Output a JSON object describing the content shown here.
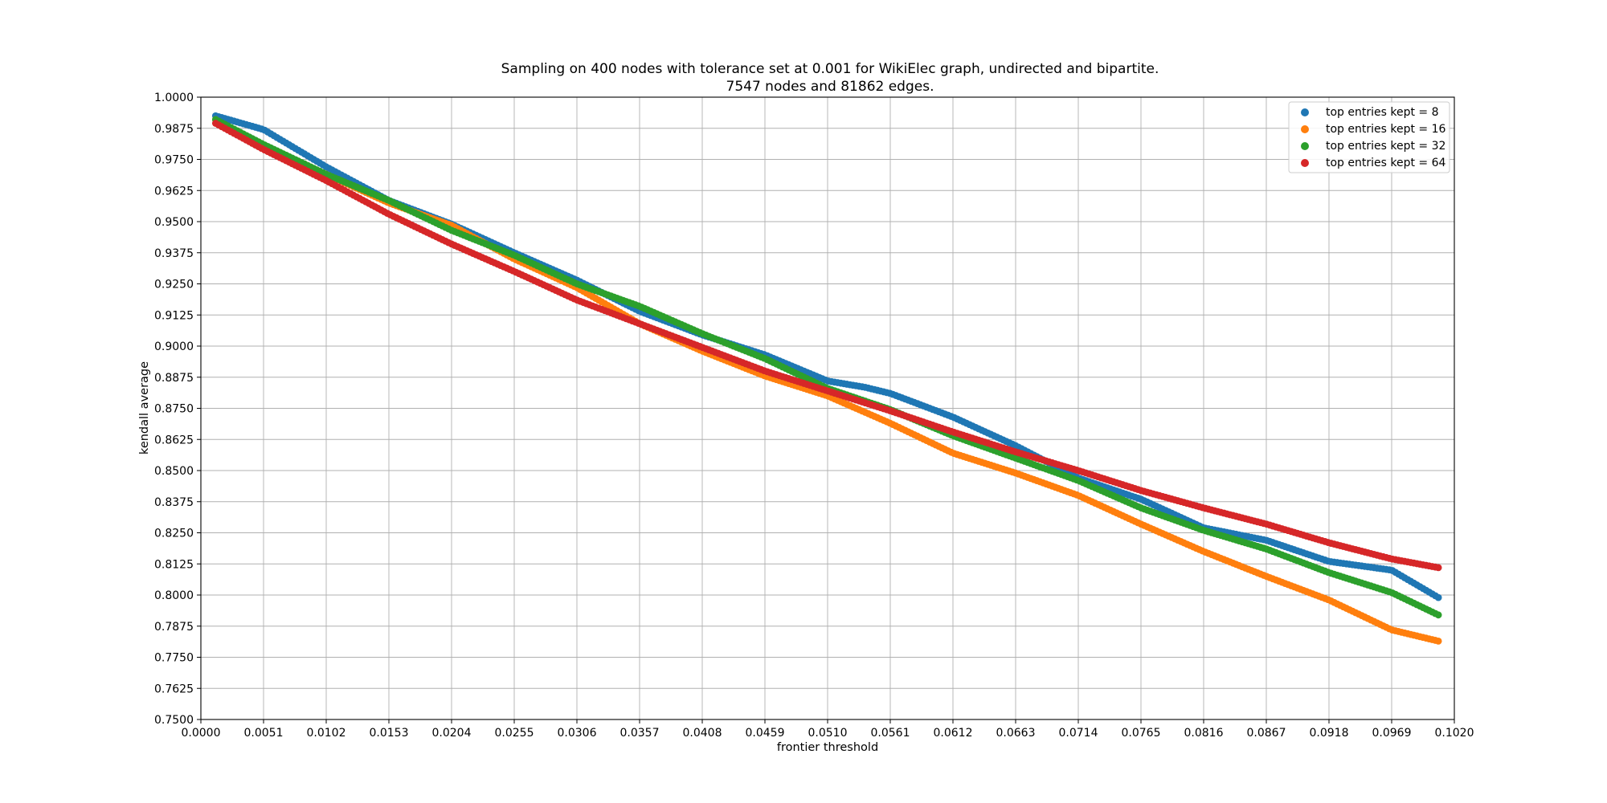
{
  "chart_data": {
    "type": "scatter",
    "title_lines": [
      "Sampling on 400 nodes with tolerance set at 0.001 for WikiElec graph, undirected and bipartite.",
      "7547 nodes and 81862 edges."
    ],
    "xlabel": "frontier threshold",
    "ylabel": "kendall average",
    "xlim": [
      0.0,
      0.102
    ],
    "ylim": [
      0.75,
      1.0
    ],
    "grid": true,
    "legend_position": "top-right",
    "x_ticks": [
      "0.0000",
      "0.0051",
      "0.0102",
      "0.0153",
      "0.0204",
      "0.0255",
      "0.0306",
      "0.0357",
      "0.0408",
      "0.0459",
      "0.0510",
      "0.0561",
      "0.0612",
      "0.0663",
      "0.0714",
      "0.0765",
      "0.0816",
      "0.0867",
      "0.0918",
      "0.0969",
      "0.1020"
    ],
    "y_ticks": [
      "0.7500",
      "0.7625",
      "0.7750",
      "0.7875",
      "0.8000",
      "0.8125",
      "0.8250",
      "0.8375",
      "0.8500",
      "0.8625",
      "0.8750",
      "0.8875",
      "0.9000",
      "0.9125",
      "0.9250",
      "0.9375",
      "0.9500",
      "0.9625",
      "0.9750",
      "0.9875",
      "1.0000"
    ],
    "x_sample": {
      "start": 0.0012,
      "end": 0.1007,
      "count": 400
    },
    "series": [
      {
        "name": "top entries kept = 8",
        "color": "#1f77b4",
        "knots_x": [
          0.0012,
          0.0051,
          0.0102,
          0.0153,
          0.0204,
          0.0255,
          0.0306,
          0.0357,
          0.0408,
          0.0459,
          0.051,
          0.054,
          0.0561,
          0.0612,
          0.0663,
          0.0714,
          0.0765,
          0.0816,
          0.0867,
          0.0918,
          0.0969,
          0.1007
        ],
        "knots_y": [
          0.9925,
          0.987,
          0.972,
          0.9585,
          0.949,
          0.9375,
          0.9265,
          0.914,
          0.9045,
          0.8965,
          0.886,
          0.8835,
          0.881,
          0.8715,
          0.86,
          0.847,
          0.8385,
          0.827,
          0.822,
          0.8135,
          0.81,
          0.799
        ]
      },
      {
        "name": "top entries kept = 16",
        "color": "#ff7f0e",
        "knots_x": [
          0.0012,
          0.0051,
          0.0102,
          0.0153,
          0.0204,
          0.0255,
          0.0306,
          0.0357,
          0.0408,
          0.0459,
          0.051,
          0.0561,
          0.0612,
          0.0663,
          0.0714,
          0.0765,
          0.0816,
          0.0867,
          0.0918,
          0.0969,
          0.1007
        ],
        "knots_y": [
          0.991,
          0.98,
          0.969,
          0.9575,
          0.9485,
          0.935,
          0.9235,
          0.909,
          0.898,
          0.888,
          0.88,
          0.869,
          0.857,
          0.849,
          0.84,
          0.8285,
          0.8175,
          0.8075,
          0.798,
          0.786,
          0.7815
        ]
      },
      {
        "name": "top entries kept = 32",
        "color": "#2ca02c",
        "knots_x": [
          0.0012,
          0.0051,
          0.0102,
          0.0153,
          0.0204,
          0.0255,
          0.0306,
          0.0357,
          0.0408,
          0.0459,
          0.051,
          0.0561,
          0.0612,
          0.0663,
          0.0714,
          0.0765,
          0.0816,
          0.0867,
          0.0918,
          0.0969,
          0.1007
        ],
        "knots_y": [
          0.991,
          0.981,
          0.969,
          0.9585,
          0.9465,
          0.9365,
          0.925,
          0.916,
          0.905,
          0.895,
          0.883,
          0.8745,
          0.864,
          0.855,
          0.846,
          0.835,
          0.826,
          0.8185,
          0.809,
          0.801,
          0.792
        ]
      },
      {
        "name": "top entries kept = 64",
        "color": "#d62728",
        "knots_x": [
          0.0012,
          0.0051,
          0.0102,
          0.0153,
          0.0204,
          0.0255,
          0.0306,
          0.0357,
          0.0408,
          0.0459,
          0.051,
          0.0561,
          0.0612,
          0.0663,
          0.0714,
          0.0765,
          0.0816,
          0.0867,
          0.0918,
          0.0969,
          0.1007
        ],
        "knots_y": [
          0.9895,
          0.979,
          0.9665,
          0.953,
          0.941,
          0.93,
          0.9185,
          0.909,
          0.8995,
          0.89,
          0.882,
          0.874,
          0.8655,
          0.8575,
          0.85,
          0.842,
          0.835,
          0.8285,
          0.821,
          0.8145,
          0.811
        ]
      }
    ]
  }
}
